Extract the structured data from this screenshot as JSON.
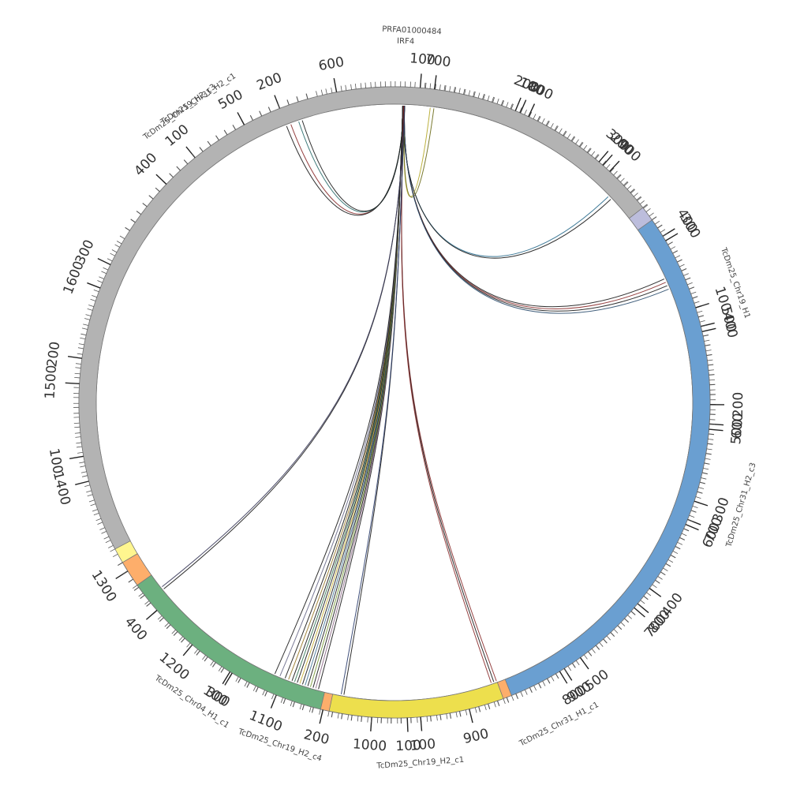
{
  "chart_data": {
    "type": "chord",
    "units": "kb",
    "segments": [
      {
        "name": "IRF4",
        "label": "IRF4",
        "length": 12,
        "color": "#9ecae1",
        "ticks": []
      },
      {
        "name": "TcDm25_Chr31_H1_c1",
        "label": "TcDm25_Chr31_H1_c1",
        "length": 1650,
        "color": "#fff68f",
        "ticks": [
          100,
          200,
          300,
          400,
          500,
          600,
          700,
          800,
          900,
          1000,
          1100,
          1200,
          1300,
          1400,
          1500,
          1600
        ]
      },
      {
        "name": "TcDm25_Chr19_H2_c3",
        "label": "TcDm25_Chr19_H2_c3",
        "length": 230,
        "color": "#a1d99b",
        "ticks": [
          100,
          200
        ]
      },
      {
        "name": "TcDm25_Chr19_H1",
        "label": "TcDm25_Chr19_H1",
        "length": 940,
        "color": "#bcbddc",
        "ticks": [
          100,
          200,
          300,
          400,
          500,
          600,
          700,
          800,
          900
        ]
      },
      {
        "name": "TcDm25_Chr19_H2_c4",
        "label": "TcDm25_Chr19_H2_c4",
        "length": 460,
        "color": "#fdae6b",
        "ticks": [
          100,
          200,
          300,
          400
        ]
      },
      {
        "name": "TcDm25_Chr31_H2_c1",
        "label": "TcDm25_Chr31_H2_c1",
        "length": 950,
        "color": "#b3b3b3",
        "ticks": [
          100,
          200,
          300,
          400,
          500,
          600,
          700,
          800,
          900
        ]
      },
      {
        "name": "TcDm25_Chr31_H2_c3",
        "label": "TcDm25_Chr31_H2_c3",
        "length": 580,
        "color": "#6a9fd1",
        "ticks": [
          100,
          200,
          300,
          400,
          500
        ]
      },
      {
        "name": "TcDm25_Chr19_H2_c1",
        "label": "TcDm25_Chr19_H2_c1",
        "length": 180,
        "color": "#eddf4d",
        "ticks": [
          100
        ]
      },
      {
        "name": "TcDm25_Chr04_H1_c1",
        "label": "TcDm25_Chr04_H1_c1",
        "length": 230,
        "color": "#6cb07f",
        "ticks": [
          100
        ]
      }
    ],
    "extra_labels": [
      "PRFA01000484"
    ],
    "links": [
      {
        "from": [
          "IRF4",
          5
        ],
        "to": [
          "TcDm25_Chr31_H1_c1",
          1060
        ],
        "color": "#1a1a1a"
      },
      {
        "from": [
          "IRF4",
          5
        ],
        "to": [
          "TcDm25_Chr31_H1_c1",
          1063
        ],
        "color": "#8e6c8a"
      },
      {
        "from": [
          "IRF4",
          5
        ],
        "to": [
          "TcDm25_Chr31_H1_c1",
          1066
        ],
        "color": "#1a1a1a"
      },
      {
        "from": [
          "IRF4",
          5
        ],
        "to": [
          "TcDm25_Chr31_H1_c1",
          1069
        ],
        "color": "#7a9a3a"
      },
      {
        "from": [
          "IRF4",
          5
        ],
        "to": [
          "TcDm25_Chr31_H1_c1",
          1072
        ],
        "color": "#1a1a1a"
      },
      {
        "from": [
          "IRF4",
          5
        ],
        "to": [
          "TcDm25_Chr31_H1_c1",
          1075
        ],
        "color": "#4a7a9a"
      },
      {
        "from": [
          "IRF4",
          5
        ],
        "to": [
          "TcDm25_Chr31_H1_c1",
          1078
        ],
        "color": "#1a1a1a"
      },
      {
        "from": [
          "IRF4",
          5
        ],
        "to": [
          "TcDm25_Chr31_H1_c1",
          1081
        ],
        "color": "#c9b13a"
      },
      {
        "from": [
          "IRF4",
          5
        ],
        "to": [
          "TcDm25_Chr31_H1_c1",
          1084
        ],
        "color": "#1a1a1a"
      },
      {
        "from": [
          "IRF4",
          5
        ],
        "to": [
          "TcDm25_Chr31_H1_c1",
          1087
        ],
        "color": "#3a7a5a"
      },
      {
        "from": [
          "IRF4",
          5
        ],
        "to": [
          "TcDm25_Chr31_H1_c1",
          1090
        ],
        "color": "#1a1a1a"
      },
      {
        "from": [
          "IRF4",
          5
        ],
        "to": [
          "TcDm25_Chr31_H1_c1",
          1094
        ],
        "color": "#9a7a2a"
      },
      {
        "from": [
          "IRF4",
          5
        ],
        "to": [
          "TcDm25_Chr31_H1_c1",
          1098
        ],
        "color": "#1a1a1a"
      },
      {
        "from": [
          "IRF4",
          5
        ],
        "to": [
          "TcDm25_Chr31_H1_c1",
          1104
        ],
        "color": "#6a6a8a"
      },
      {
        "from": [
          "IRF4",
          5
        ],
        "to": [
          "TcDm25_Chr31_H1_c1",
          1110
        ],
        "color": "#1a1a1a"
      },
      {
        "from": [
          "IRF4",
          6
        ],
        "to": [
          "TcDm25_Chr19_H2_c3",
          205
        ],
        "color": "#8b2e2e"
      },
      {
        "from": [
          "IRF4",
          6
        ],
        "to": [
          "TcDm25_Chr19_H2_c3",
          200
        ],
        "color": "#1a1a1a"
      },
      {
        "from": [
          "IRF4",
          6
        ],
        "to": [
          "TcDm25_Chr19_H2_c3",
          214
        ],
        "color": "#2c6e6e"
      },
      {
        "from": [
          "IRF4",
          6
        ],
        "to": [
          "TcDm25_Chr19_H2_c3",
          218
        ],
        "color": "#1a1a1a"
      },
      {
        "from": [
          "IRF4",
          6
        ],
        "to": [
          "TcDm25_Chr19_H1",
          332
        ],
        "color": "#2c6e8e"
      },
      {
        "from": [
          "IRF4",
          6
        ],
        "to": [
          "TcDm25_Chr19_H1",
          336
        ],
        "color": "#1a1a1a"
      },
      {
        "from": [
          "IRF4",
          6
        ],
        "to": [
          "TcDm25_Chr19_H2_c4",
          14
        ],
        "color": "#8b2e2e"
      },
      {
        "from": [
          "IRF4",
          6
        ],
        "to": [
          "TcDm25_Chr19_H2_c4",
          17
        ],
        "color": "#1a1a1a"
      },
      {
        "from": [
          "IRF4",
          6
        ],
        "to": [
          "TcDm25_Chr19_H2_c4",
          20
        ],
        "color": "#8b2e2e"
      },
      {
        "from": [
          "IRF4",
          7
        ],
        "to": [
          "TcDm25_Chr31_H2_c1",
          698
        ],
        "color": "#b5a82a"
      },
      {
        "from": [
          "IRF4",
          7
        ],
        "to": [
          "TcDm25_Chr31_H2_c1",
          702
        ],
        "color": "#6b6b1a"
      },
      {
        "from": [
          "IRF4",
          7
        ],
        "to": [
          "TcDm25_Chr31_H2_c3",
          60
        ],
        "color": "#1a1a1a"
      },
      {
        "from": [
          "IRF4",
          7
        ],
        "to": [
          "TcDm25_Chr31_H2_c3",
          64
        ],
        "color": "#8b2e2e"
      },
      {
        "from": [
          "IRF4",
          7
        ],
        "to": [
          "TcDm25_Chr31_H2_c3",
          68
        ],
        "color": "#1a1a1a"
      },
      {
        "from": [
          "IRF4",
          7
        ],
        "to": [
          "TcDm25_Chr31_H2_c3",
          72
        ],
        "color": "#2c4e6e"
      },
      {
        "from": [
          "IRF4",
          7
        ],
        "to": [
          "TcDm25_Chr19_H2_c1",
          168
        ],
        "color": "#1a1a1a"
      },
      {
        "from": [
          "IRF4",
          7
        ],
        "to": [
          "TcDm25_Chr19_H2_c1",
          171
        ],
        "color": "#2c3e6e"
      },
      {
        "from": [
          "IRF4",
          7
        ],
        "to": [
          "TcDm25_Chr04_H1_c1",
          210
        ],
        "color": "#1a1a1a"
      },
      {
        "from": [
          "IRF4",
          7
        ],
        "to": [
          "TcDm25_Chr04_H1_c1",
          213
        ],
        "color": "#3a3a5a"
      }
    ]
  }
}
